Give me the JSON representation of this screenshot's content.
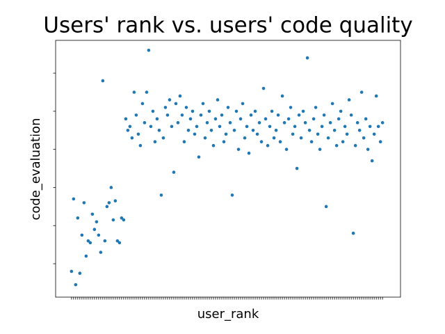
{
  "chart_data": {
    "type": "scatter",
    "title": "Users' rank vs. users' code quality",
    "x_label": "user_rank",
    "y_label": "code_evaluation",
    "color": "#1f77b4",
    "xlim": [
      -7.6,
      157.6
    ],
    "ylim": [
      -0.876,
      5.86
    ],
    "yticks": [
      0,
      1,
      2,
      3,
      4,
      5
    ],
    "x": [
      0,
      1,
      2,
      3,
      4,
      5,
      6,
      7,
      8,
      9,
      10,
      11,
      12,
      13,
      14,
      15,
      16,
      17,
      18,
      19,
      20,
      21,
      22,
      23,
      24,
      25,
      26,
      27,
      28,
      29,
      30,
      31,
      32,
      33,
      34,
      35,
      36,
      37,
      38,
      39,
      40,
      41,
      42,
      43,
      44,
      45,
      46,
      47,
      48,
      49,
      50,
      51,
      52,
      53,
      54,
      55,
      56,
      57,
      58,
      59,
      60,
      61,
      62,
      63,
      64,
      65,
      66,
      67,
      68,
      69,
      70,
      71,
      72,
      73,
      74,
      75,
      76,
      77,
      78,
      79,
      80,
      81,
      82,
      83,
      84,
      85,
      86,
      87,
      88,
      89,
      90,
      91,
      92,
      93,
      94,
      95,
      96,
      97,
      98,
      99,
      100,
      101,
      102,
      103,
      104,
      105,
      106,
      107,
      108,
      109,
      110,
      111,
      112,
      113,
      114,
      115,
      116,
      117,
      118,
      119,
      120,
      121,
      122,
      123,
      124,
      125,
      126,
      127,
      128,
      129,
      130,
      131,
      132,
      133,
      134,
      135,
      136,
      137,
      138,
      139,
      140,
      141,
      142,
      143,
      144,
      145,
      146,
      147,
      148,
      149
    ],
    "values": [
      -0.2,
      1.7,
      -0.55,
      1.2,
      -0.25,
      0.75,
      1.6,
      0.2,
      0.6,
      0.55,
      1.3,
      0.9,
      1.1,
      0.75,
      0.3,
      4.8,
      0.6,
      1.5,
      1.6,
      2.0,
      1.15,
      1.65,
      0.6,
      0.55,
      1.2,
      1.15,
      3.8,
      3.5,
      3.6,
      3.3,
      4.5,
      3.9,
      3.4,
      3.1,
      4.2,
      3.7,
      4.5,
      5.6,
      3.6,
      4.0,
      3.2,
      3.8,
      3.5,
      1.8,
      3.3,
      4.1,
      3.9,
      4.3,
      3.6,
      2.4,
      4.2,
      3.7,
      4.4,
      3.9,
      3.2,
      4.1,
      3.5,
      3.8,
      4.0,
      3.4,
      3.6,
      2.8,
      3.9,
      4.2,
      3.3,
      3.7,
      4.0,
      3.5,
      3.1,
      3.8,
      4.3,
      3.6,
      3.9,
      3.2,
      3.4,
      4.1,
      3.7,
      1.8,
      3.5,
      4.0,
      3.0,
      3.8,
      4.2,
      3.3,
      3.6,
      2.9,
      3.9,
      3.5,
      4.0,
      3.4,
      3.7,
      3.2,
      4.6,
      3.8,
      3.1,
      3.6,
      4.0,
      3.3,
      3.5,
      3.9,
      3.2,
      4.4,
      3.7,
      3.0,
      3.8,
      4.1,
      3.4,
      3.6,
      2.5,
      3.9,
      3.3,
      4.0,
      3.7,
      5.4,
      3.5,
      3.2,
      3.8,
      4.1,
      3.4,
      3.0,
      3.6,
      3.9,
      1.5,
      3.3,
      3.7,
      4.2,
      3.5,
      3.1,
      3.8,
      4.0,
      3.2,
      3.6,
      3.4,
      4.3,
      3.9,
      0.8,
      3.1,
      3.7,
      3.5,
      4.5,
      3.3,
      3.8,
      3.0,
      3.6,
      2.7,
      3.4,
      4.4,
      3.6,
      3.2,
      3.7
    ]
  }
}
